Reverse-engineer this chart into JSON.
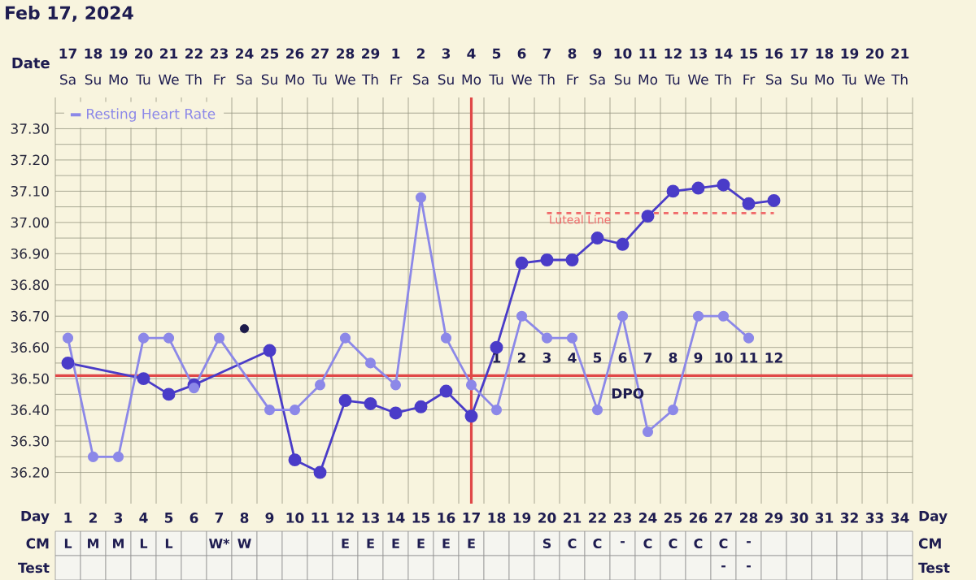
{
  "chart_data": [
    {
      "type": "line",
      "title": "Feb 17, 2024",
      "xlabel": "Day",
      "x2label": "Date",
      "categories": [
        "1",
        "2",
        "3",
        "4",
        "5",
        "6",
        "7",
        "8",
        "9",
        "10",
        "11",
        "12",
        "13",
        "14",
        "15",
        "16",
        "17",
        "18",
        "19",
        "20",
        "21",
        "22",
        "23",
        "24",
        "25",
        "26",
        "27",
        "28",
        "29",
        "30",
        "31",
        "32",
        "33",
        "34"
      ],
      "ylim": [
        36.1,
        37.4
      ],
      "yticks": [
        {
          "value": 36.2,
          "label": "36.20"
        },
        {
          "value": 36.3,
          "label": "36.30"
        },
        {
          "value": 36.4,
          "label": "36.40"
        },
        {
          "value": 36.5,
          "label": "36.50"
        },
        {
          "value": 36.6,
          "label": "36.60"
        },
        {
          "value": 36.7,
          "label": "36.70"
        },
        {
          "value": 36.8,
          "label": "36.80"
        },
        {
          "value": 36.9,
          "label": "36.90"
        },
        {
          "value": 37.0,
          "label": "37.00"
        },
        {
          "value": 37.1,
          "label": "37.10"
        },
        {
          "value": 37.2,
          "label": "37.20"
        },
        {
          "value": 37.3,
          "label": "37.30"
        }
      ],
      "x2lim": [
        "2024-02-16T12:00",
        "2024-03-21T12:00"
      ],
      "x2ticks": [
        {
          "value": "2024-02-17",
          "label": "17"
        },
        {
          "value": "2024-02-18",
          "label": "18"
        },
        {
          "value": "2024-02-19",
          "label": "19"
        },
        {
          "value": "2024-02-20",
          "label": "20"
        },
        {
          "value": "2024-02-21",
          "label": "21"
        },
        {
          "value": "2024-02-22",
          "label": "22"
        },
        {
          "value": "2024-02-23",
          "label": "23"
        },
        {
          "value": "2024-02-24",
          "label": "24"
        },
        {
          "value": "2024-02-25",
          "label": "25"
        },
        {
          "value": "2024-02-26",
          "label": "26"
        },
        {
          "value": "2024-02-27",
          "label": "27"
        },
        {
          "value": "2024-02-28",
          "label": "28"
        },
        {
          "value": "2024-02-29",
          "label": "29"
        },
        {
          "value": "2024-03-01",
          "label": "1"
        },
        {
          "value": "2024-03-02",
          "label": "2"
        },
        {
          "value": "2024-03-03",
          "label": "3"
        },
        {
          "value": "2024-03-04",
          "label": "4"
        },
        {
          "value": "2024-03-05",
          "label": "5"
        },
        {
          "value": "2024-03-06",
          "label": "6"
        },
        {
          "value": "2024-03-07",
          "label": "7"
        },
        {
          "value": "2024-03-08",
          "label": "8"
        },
        {
          "value": "2024-03-09",
          "label": "9"
        },
        {
          "value": "2024-03-10",
          "label": "10"
        },
        {
          "value": "2024-03-11",
          "label": "11"
        },
        {
          "value": "2024-03-12",
          "label": "12"
        },
        {
          "value": "2024-03-13",
          "label": "13"
        },
        {
          "value": "2024-03-14",
          "label": "14"
        },
        {
          "value": "2024-03-15",
          "label": "15"
        },
        {
          "value": "2024-03-16",
          "label": "16"
        },
        {
          "value": "2024-03-17",
          "label": "17"
        },
        {
          "value": "2024-03-18",
          "label": "18"
        },
        {
          "value": "2024-03-19",
          "label": "19"
        },
        {
          "value": "2024-03-20",
          "label": "20"
        },
        {
          "value": "2024-03-21",
          "label": "21"
        }
      ],
      "grid": true,
      "legend": "top left",
      "marker": "circle",
      "series": [
        {
          "color": "#4a3cc8",
          "values": [
            36.55,
            null,
            null,
            36.5,
            36.45,
            36.48,
            null,
            null,
            36.59,
            36.24,
            36.2,
            36.43,
            36.42,
            36.39,
            36.41,
            36.46,
            36.38,
            36.6,
            36.87,
            36.88,
            36.88,
            36.95,
            36.93,
            37.02,
            37.1,
            37.11,
            37.12,
            37.06,
            37.07,
            null,
            null,
            null,
            null,
            null
          ]
        },
        {
          "name": "Resting Heart Rate",
          "color": "#8c88e8",
          "values": [
            36.63,
            36.25,
            36.25,
            36.63,
            36.63,
            36.47,
            36.63,
            null,
            36.4,
            36.4,
            36.48,
            36.63,
            36.55,
            36.48,
            37.08,
            36.63,
            36.48,
            36.4,
            36.7,
            36.63,
            36.63,
            36.4,
            36.7,
            36.33,
            36.4,
            36.7,
            36.7,
            36.63,
            null,
            null,
            null,
            null,
            null,
            null
          ]
        },
        {
          "type": "scatter",
          "color": "#1c1a4a",
          "values": [
            null,
            null,
            null,
            null,
            null,
            null,
            null,
            36.66,
            null,
            null,
            null,
            null,
            null,
            null,
            null,
            null,
            null,
            null,
            null,
            null,
            null,
            null,
            null,
            null,
            null,
            null,
            null,
            null,
            null,
            null,
            null,
            null,
            null,
            null
          ]
        },
        {
          "type": "line",
          "name": "Luteal Line",
          "color": "#f06a6a",
          "line_style": "dashed",
          "marker": "none",
          "values": [
            null,
            null,
            null,
            null,
            null,
            null,
            null,
            null,
            null,
            null,
            null,
            null,
            null,
            null,
            null,
            null,
            null,
            null,
            null,
            37.03,
            37.03,
            37.03,
            37.03,
            37.03,
            37.03,
            37.03,
            37.03,
            37.03,
            37.03,
            null,
            null,
            null,
            null,
            null
          ]
        }
      ],
      "ref_lines": [
        {
          "axis": "y",
          "value": 36.51,
          "color": "#e04848"
        },
        {
          "axis": "x2",
          "value": "2024-03-04",
          "color": "#e04848"
        }
      ],
      "annotations": [
        "Sa",
        "Su",
        "Mo",
        "Tu",
        "We",
        "Th",
        "Fr",
        "Sa",
        "Su",
        "Mo",
        "Tu",
        "We",
        "Th",
        "Fr",
        "Sa",
        "Su",
        "Mo",
        "Tu",
        "We",
        "Th",
        "Fr",
        "Sa",
        "Su",
        "Mo",
        "Tu",
        "We",
        "Th",
        "Fr",
        "Sa",
        "Su",
        "Mo",
        "Tu",
        "We",
        "Th",
        "1",
        "2",
        "3",
        "4",
        "5",
        "6",
        "7",
        "8",
        "9",
        "10",
        "11",
        "12",
        "DPO",
        "Day"
      ]
    },
    {
      "type": "heatmap",
      "categories": [
        null,
        null,
        null,
        null,
        null,
        null,
        null,
        null,
        null,
        null,
        null,
        null,
        null,
        null,
        null,
        null,
        null,
        null,
        null,
        null,
        null,
        null,
        null,
        null,
        null,
        null,
        null,
        null,
        null,
        null,
        null,
        null,
        null,
        null
      ],
      "y_categories": [
        "CM",
        "Test"
      ],
      "y2_categories": [
        "CM",
        "Test"
      ],
      "cells": [
        [
          null,
          null,
          null,
          null,
          null,
          null,
          null,
          null,
          null,
          null,
          null,
          null,
          null,
          null,
          null,
          null,
          null,
          null,
          null,
          null,
          null,
          null,
          null,
          null,
          null,
          null,
          null,
          null,
          null,
          null,
          null,
          null,
          null,
          null
        ],
        [
          null,
          null,
          null,
          null,
          null,
          null,
          null,
          null,
          null,
          null,
          null,
          null,
          null,
          null,
          null,
          null,
          null,
          null,
          null,
          null,
          null,
          null,
          null,
          null,
          null,
          null,
          null,
          null,
          null,
          null,
          null,
          null,
          null,
          null
        ]
      ],
      "cell_labels": [
        [
          "L",
          "M",
          "M",
          "L",
          "L",
          null,
          "W*",
          "W",
          null,
          null,
          null,
          "E",
          "E",
          "E",
          "E",
          "E",
          "E",
          null,
          null,
          "S",
          "C",
          "C",
          "-",
          "C",
          "C",
          "C",
          "C",
          "-",
          null,
          null,
          null,
          null,
          null,
          null
        ],
        [
          null,
          null,
          null,
          null,
          null,
          null,
          null,
          null,
          null,
          null,
          null,
          null,
          null,
          null,
          null,
          null,
          null,
          null,
          null,
          null,
          null,
          null,
          null,
          null,
          null,
          null,
          "-",
          "-",
          null,
          null,
          null,
          null,
          null,
          null
        ]
      ]
    }
  ]
}
